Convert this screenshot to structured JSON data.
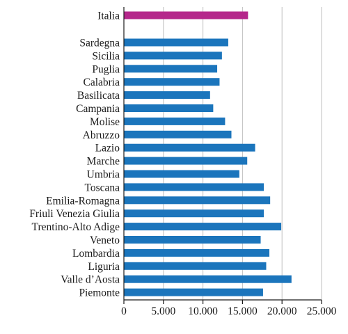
{
  "chart_data": {
    "type": "bar",
    "orientation": "horizontal",
    "title": "",
    "xlabel": "",
    "ylabel": "",
    "xlim": [
      0,
      25000
    ],
    "x_ticks": [
      0,
      5000,
      10000,
      15000,
      20000,
      25000
    ],
    "x_tick_labels": [
      "0",
      "5.000",
      "10.000",
      "15.000",
      "20.000",
      "25.000"
    ],
    "grid": "vertical",
    "legend": "none",
    "highlight_category": "Italia",
    "colors": {
      "bar": "#1b75bc",
      "highlight": "#b5278b",
      "grid": "#bfbfbf",
      "axis": "#1a1a1a"
    },
    "categories": [
      "Italia",
      "Sardegna",
      "Sicilia",
      "Puglia",
      "Calabria",
      "Basilicata",
      "Campania",
      "Molise",
      "Abruzzo",
      "Lazio",
      "Marche",
      "Umbria",
      "Toscana",
      "Emilia-Romagna",
      "Friuli Venezia Giulia",
      "Trentino-Alto Adige",
      "Veneto",
      "Lombardia",
      "Liguria",
      "Valle d’Aosta",
      "Piemonte"
    ],
    "values": [
      15700,
      13200,
      12400,
      11800,
      12100,
      10900,
      11300,
      12800,
      13600,
      16600,
      15600,
      14600,
      17700,
      18500,
      17700,
      19900,
      17300,
      18400,
      18000,
      21200,
      17600
    ]
  }
}
